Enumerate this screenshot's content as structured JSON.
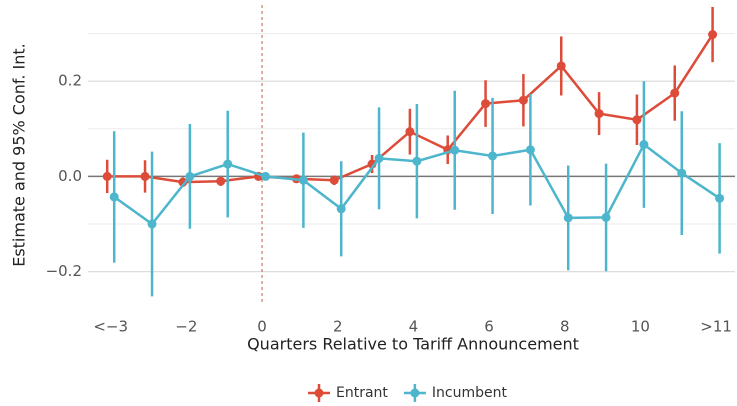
{
  "chart_data": {
    "type": "errorbar-line",
    "x_label": "Quarters Relative to Tariff Announcement",
    "y_label": "Estimate and 95% Conf. Int.",
    "x": [
      -4,
      -3,
      -2,
      -1,
      0,
      1,
      2,
      3,
      4,
      5,
      6,
      7,
      8,
      9,
      10,
      11,
      12
    ],
    "series": [
      {
        "name": "Entrant",
        "color": "#dd4b39",
        "values": [
          0.0,
          0.0,
          -0.012,
          -0.01,
          0.0,
          -0.005,
          -0.008,
          0.026,
          0.094,
          0.056,
          0.153,
          0.16,
          0.232,
          0.132,
          0.119,
          0.175,
          0.298
        ],
        "errors": [
          0.035,
          0.034,
          0.01,
          0.01,
          0.0,
          0.007,
          0.01,
          0.019,
          0.048,
          0.03,
          0.049,
          0.055,
          0.062,
          0.045,
          0.053,
          0.058,
          0.058
        ]
      },
      {
        "name": "Incumbent",
        "color": "#4db6cc",
        "values": [
          -0.043,
          -0.1,
          0.0,
          0.026,
          0.0,
          -0.008,
          -0.068,
          0.038,
          0.032,
          0.055,
          0.043,
          0.056,
          -0.087,
          -0.086,
          0.067,
          0.007,
          -0.046
        ],
        "errors": [
          0.138,
          0.152,
          0.11,
          0.112,
          0.0,
          0.1,
          0.1,
          0.107,
          0.12,
          0.125,
          0.122,
          0.117,
          0.11,
          0.113,
          0.133,
          0.13,
          0.116
        ]
      }
    ],
    "xlim": [
      -4.6,
      12.5
    ],
    "ylim": [
      -0.27,
      0.36
    ],
    "xticks": [
      {
        "value": -4,
        "label": "<−3"
      },
      {
        "value": -2,
        "label": "−2"
      },
      0,
      2,
      4,
      6,
      8,
      10,
      {
        "value": 12,
        "label": ">11"
      }
    ],
    "yticks": [
      {
        "value": -0.2,
        "label": "−0.2"
      },
      {
        "value": 0,
        "label": "0.0"
      },
      {
        "value": 0.2,
        "label": "0.2"
      }
    ],
    "minor_yticks": [
      -0.1,
      0.1,
      0.3
    ],
    "hline": 0,
    "vline": 0,
    "grid": true,
    "legend": "bottom"
  }
}
